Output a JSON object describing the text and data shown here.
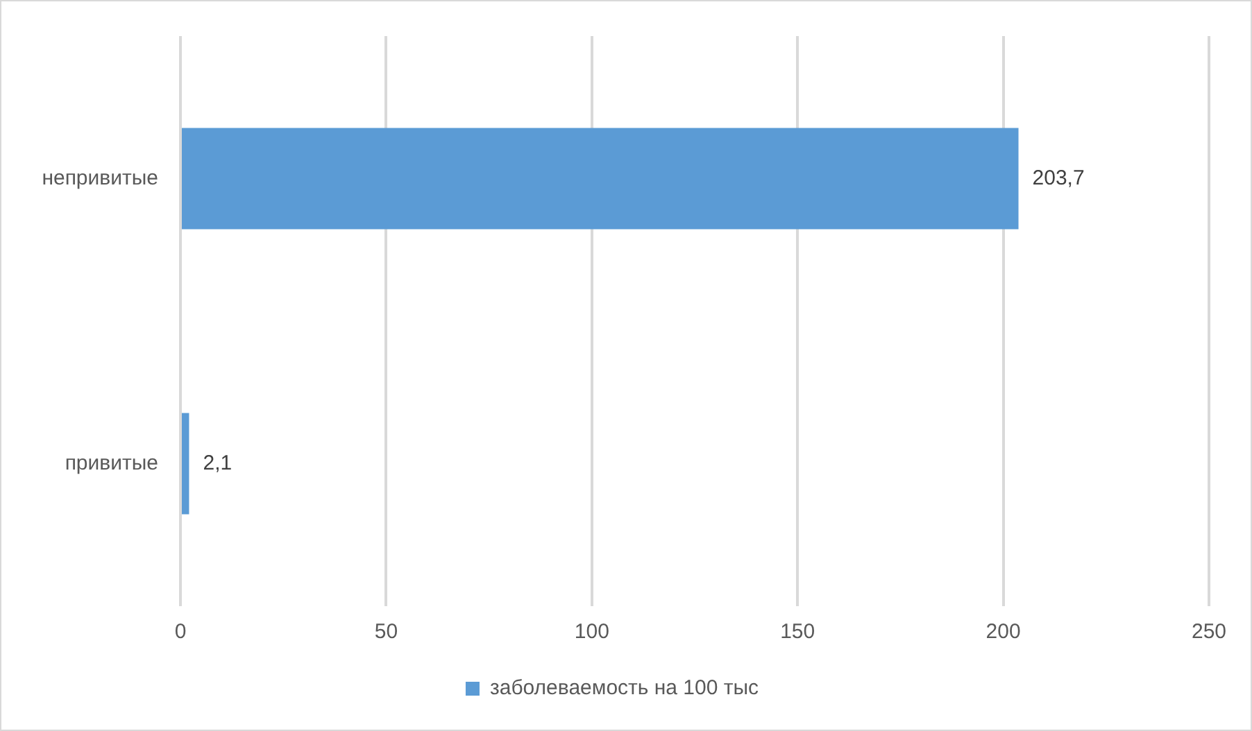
{
  "chart_data": {
    "type": "bar",
    "orientation": "horizontal",
    "categories": [
      "непривитые",
      "привитые"
    ],
    "series": [
      {
        "name": "заболеваемость на 100 тыс",
        "color": "#5b9bd5",
        "values": [
          203.7,
          2.1
        ],
        "value_labels": [
          "203,7",
          "2,1"
        ]
      }
    ],
    "xlim": [
      0,
      250
    ],
    "xticks": [
      0,
      50,
      100,
      150,
      200,
      250
    ],
    "grid": "x",
    "legend": "bottom"
  }
}
